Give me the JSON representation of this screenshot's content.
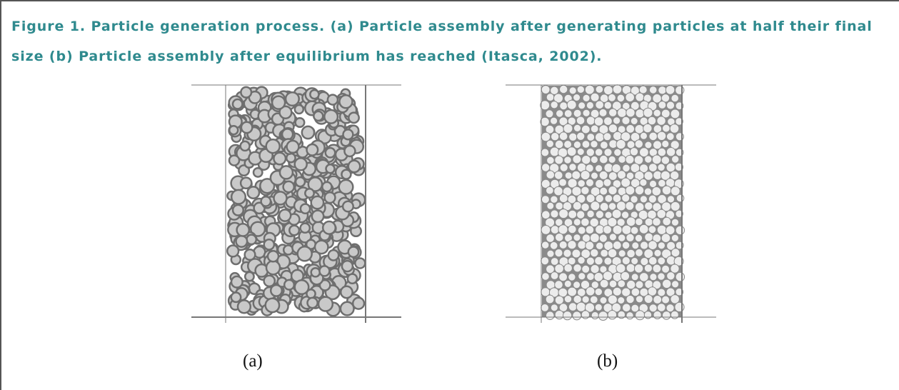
{
  "caption": "Figure 1. Particle generation process. (a) Particle assembly after generating particles at half their final size (b) Particle assembly after equilibrium has reached (Itasca, 2002).",
  "panels": [
    {
      "label": "(a)"
    },
    {
      "label": "(b)"
    }
  ]
}
